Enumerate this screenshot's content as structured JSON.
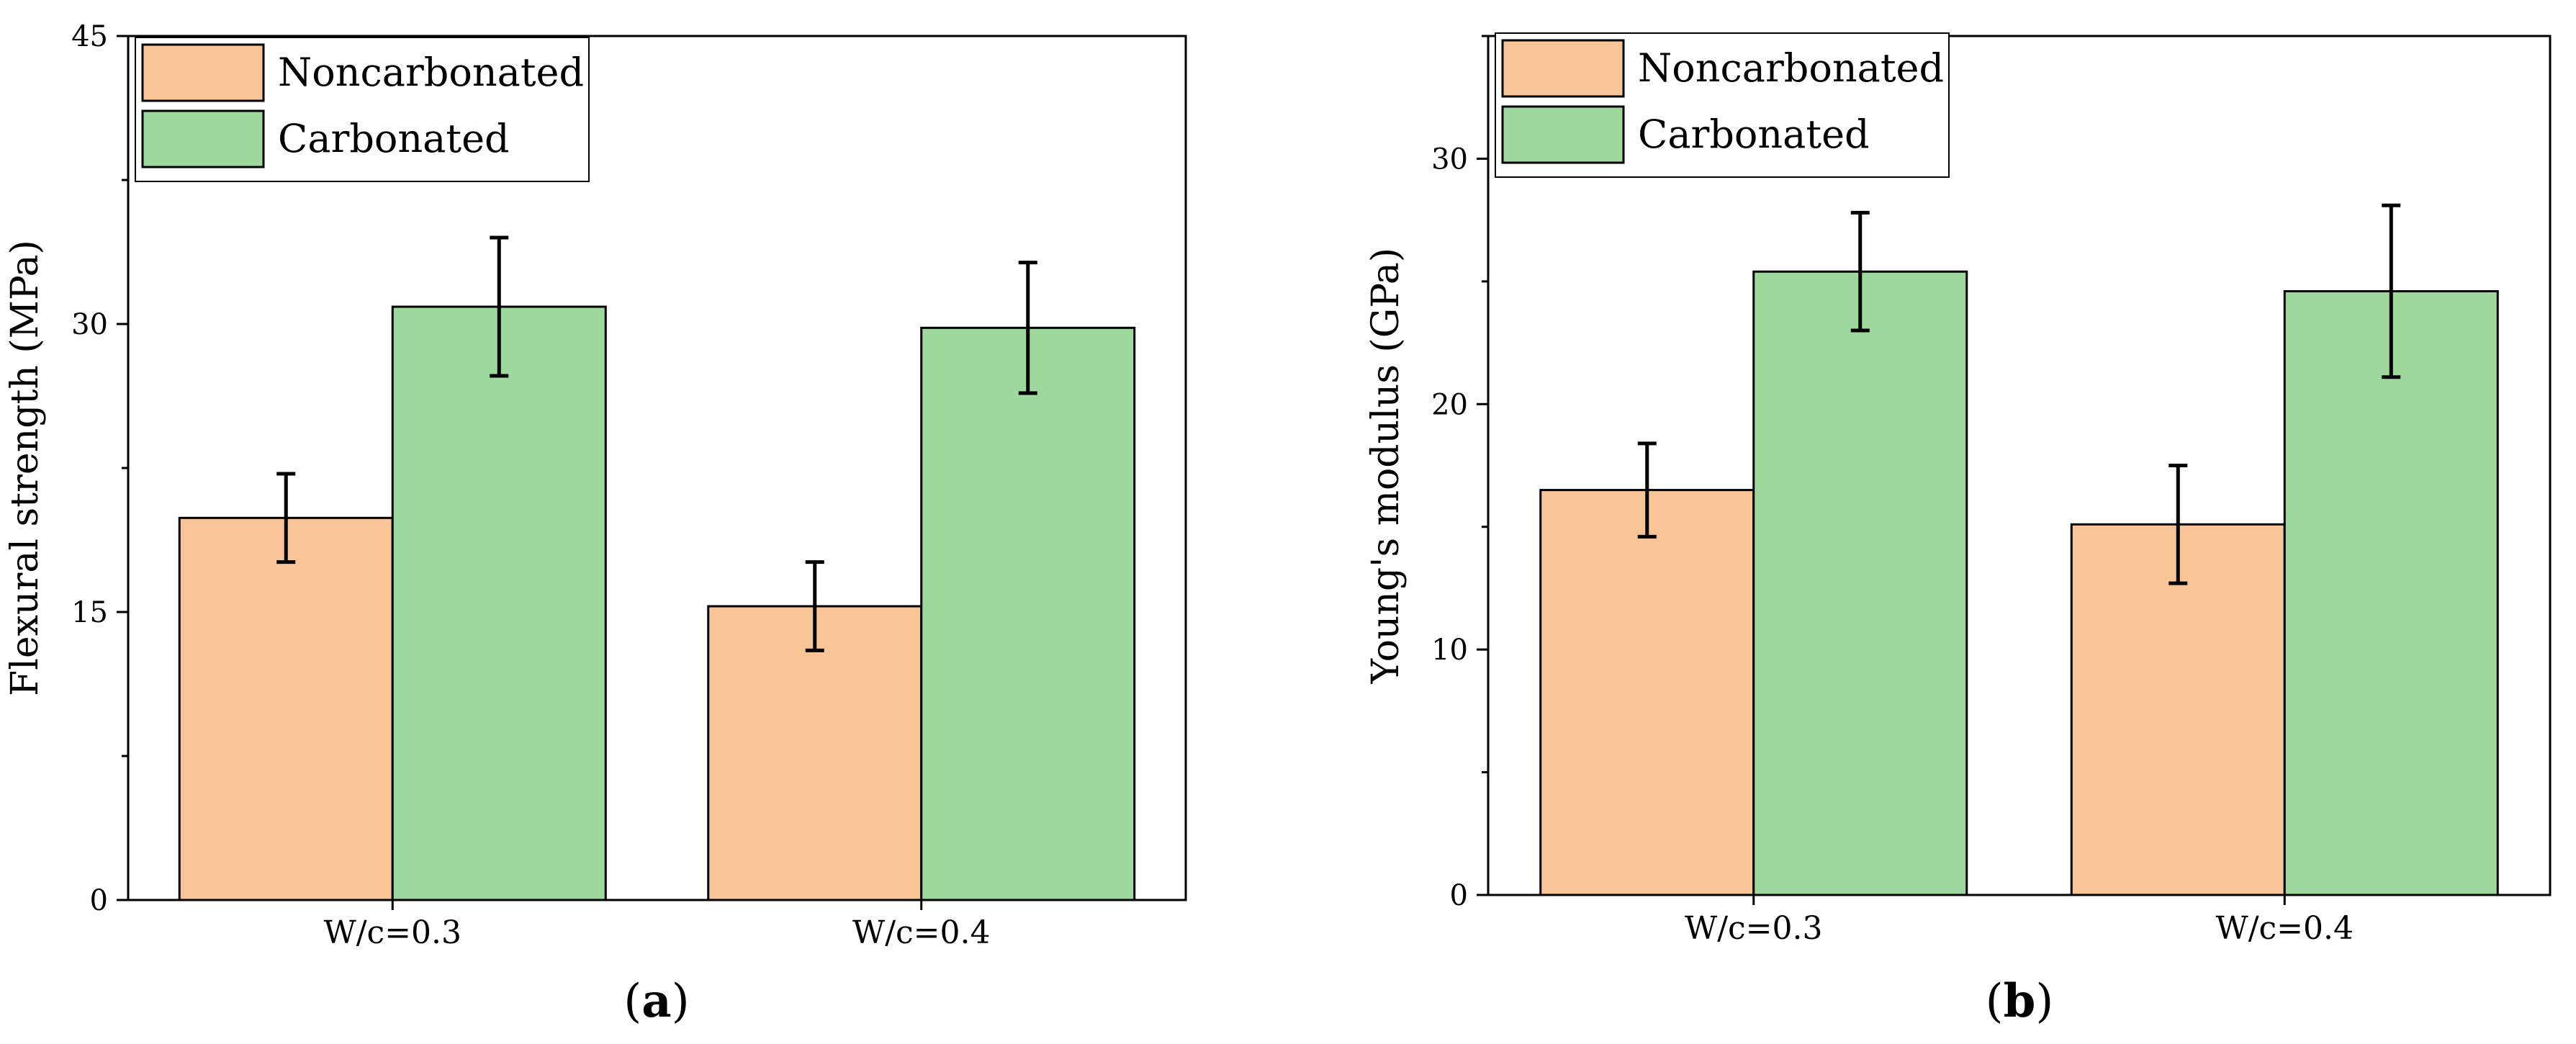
{
  "colors": {
    "noncarbonated": "#f9c596",
    "carbonated": "#9dd89c",
    "axis": "#000000",
    "error_bar": "#000000"
  },
  "chart_data": [
    {
      "type": "bar",
      "panel_label": "a",
      "ylabel": "Flexural strength (MPa)",
      "xlabel": "",
      "categories": [
        "W/c=0.3",
        "W/c=0.4"
      ],
      "ylim": [
        0,
        45
      ],
      "yticks": [
        0,
        15,
        30,
        45
      ],
      "legend_position": "top-left",
      "series": [
        {
          "name": "Noncarbonated",
          "color_key": "noncarbonated",
          "values": [
            19.9,
            15.3
          ],
          "errors": [
            2.3,
            2.3
          ]
        },
        {
          "name": "Carbonated",
          "color_key": "carbonated",
          "values": [
            30.9,
            29.8
          ],
          "errors": [
            3.6,
            3.4
          ]
        }
      ]
    },
    {
      "type": "bar",
      "panel_label": "b",
      "ylabel": "Young's modulus (GPa)",
      "xlabel": "",
      "categories": [
        "W/c=0.3",
        "W/c=0.4"
      ],
      "ylim": [
        0,
        35
      ],
      "yticks": [
        0,
        10,
        20,
        30
      ],
      "legend_position": "top-left",
      "series": [
        {
          "name": "Noncarbonated",
          "color_key": "noncarbonated",
          "values": [
            16.5,
            15.1
          ],
          "errors": [
            1.9,
            2.4
          ]
        },
        {
          "name": "Carbonated",
          "color_key": "carbonated",
          "values": [
            25.4,
            24.6
          ],
          "errors": [
            2.4,
            3.5
          ]
        }
      ]
    }
  ]
}
